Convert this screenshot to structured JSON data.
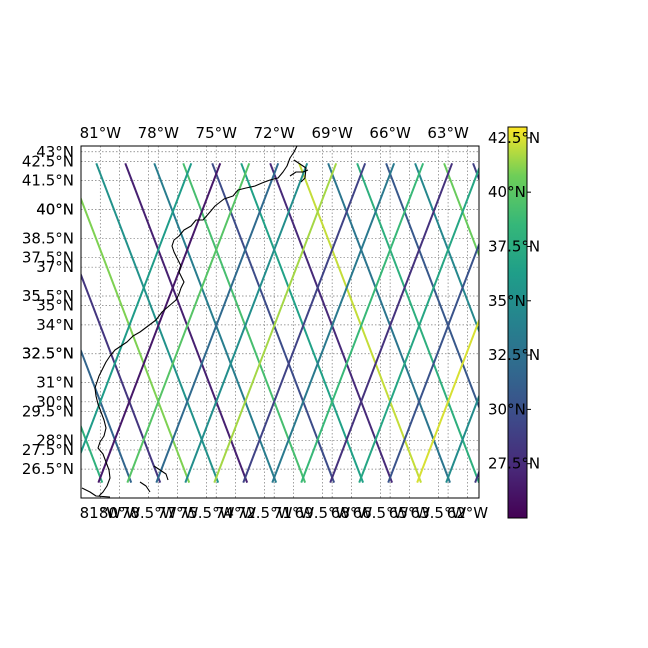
{
  "figure": {
    "projection": "PlateCarree",
    "extent": {
      "lon": [
        -82,
        -61.4
      ],
      "lat": [
        25,
        43.3
      ]
    },
    "top_lon_labels": [
      "81°W",
      "78°W",
      "75°W",
      "72°W",
      "69°W",
      "66°W",
      "63°W"
    ],
    "bottom_lon_labels": [
      "81°W",
      "80°W",
      "78.5°W",
      "77°W",
      "75.5°W",
      "74°W",
      "72.5°W",
      "71°W",
      "69.5°W",
      "68°W",
      "66.5°W",
      "65°W",
      "63.5°W",
      "62°W"
    ],
    "left_lat_labels": [
      "43°N",
      "42.5°N",
      "41.5°N",
      "40°N",
      "40°N",
      "38.5°N",
      "37.5°N",
      "37°N",
      "35.5°N",
      "35°N",
      "34°N",
      "32.5°N",
      "32.5°N",
      "31°N",
      "29.5°N",
      "30°N",
      "28°N",
      "27.5°N",
      "26.5°N"
    ],
    "top_lon_values": [
      -81,
      -78,
      -75,
      -72,
      -69,
      -66,
      -63
    ],
    "bottom_lon_values": [
      -81,
      -80,
      -78.5,
      -77,
      -75.5,
      -74,
      -72.5,
      -71,
      -69.5,
      -68,
      -66.5,
      -65,
      -63.5,
      -62
    ],
    "left_lat_values": [
      43,
      42.5,
      41.5,
      40,
      40,
      38.5,
      37.5,
      37,
      35.5,
      35,
      34,
      32.5,
      32.5,
      31,
      29.5,
      30,
      28,
      27.5,
      26.5
    ],
    "grid": true,
    "grid_style": "dotted gray",
    "coastline_color": "#000000"
  },
  "chart_data": {
    "type": "track_map",
    "colormap": "viridis",
    "color_range": [
      25,
      43
    ],
    "colorbar": {
      "orientation": "vertical",
      "placement": "right",
      "tick_labels": [
        "42.5°N",
        "40°N",
        "37.5°N",
        "35°N",
        "32.5°N",
        "30°N",
        "27.5°N"
      ],
      "tick_values": [
        42.5,
        40,
        37.5,
        35,
        32.5,
        30,
        27.5
      ]
    },
    "track_lat_range": [
      25.8,
      42.4
    ],
    "descending_track_start_lons": [
      -80.9,
      -79.4,
      -77.9,
      -76.4,
      -74.9,
      -73.4,
      -71.9,
      -70.4,
      -68.9,
      -67.4,
      -65.9,
      -64.4,
      -62.9,
      -61.4,
      -59.9,
      -58.4,
      -56.9,
      -55.4
    ],
    "ascending_track_start_lons": [
      -82.6,
      -81.1,
      -79.6,
      -78.1,
      -76.6,
      -75.1,
      -73.6,
      -72.1,
      -70.6,
      -69.1,
      -67.6,
      -66.1,
      -64.6,
      -63.1,
      -61.6,
      -60.1,
      -58.6,
      -57.1
    ],
    "track_slope_lon_per_lat": 0.38,
    "track_color_values": [
      38.0,
      31.5,
      28.2,
      41.0,
      35.3,
      26.8,
      33.6,
      39.2,
      29.7,
      36.5,
      27.4,
      42.1,
      32.9,
      37.8,
      30.6,
      34.4,
      40.5,
      28.9,
      36.1,
      26.3,
      39.8,
      31.9,
      35.0,
      41.6,
      29.1,
      33.2,
      38.6,
      27.9,
      37.0,
      30.2,
      42.4,
      34.8,
      28.5,
      40.2,
      32.4,
      36.9
    ]
  }
}
